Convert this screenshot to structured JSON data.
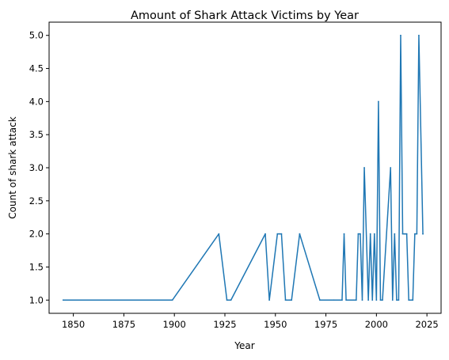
{
  "chart_data": {
    "type": "line",
    "title": "Amount of Shark Attack Victims by Year",
    "xlabel": "Year",
    "ylabel": "Count of shark attack",
    "xlim": [
      1838,
      2032
    ],
    "ylim": [
      0.8,
      5.2
    ],
    "x_ticks": [
      1850,
      1875,
      1900,
      1925,
      1950,
      1975,
      2000,
      2025
    ],
    "x_tick_labels": [
      "1850",
      "1875",
      "1900",
      "1925",
      "1950",
      "1975",
      "2000",
      "2025"
    ],
    "y_ticks": [
      1.0,
      1.5,
      2.0,
      2.5,
      3.0,
      3.5,
      4.0,
      4.5,
      5.0
    ],
    "y_tick_labels": [
      "1.0",
      "1.5",
      "2.0",
      "2.5",
      "3.0",
      "3.5",
      "4.0",
      "4.5",
      "5.0"
    ],
    "grid": false,
    "series": [
      {
        "color": "#1f77b4",
        "x": [
          1845,
          1899,
          1922,
          1926,
          1928,
          1945,
          1947,
          1951,
          1952,
          1953,
          1955,
          1957,
          1958,
          1962,
          1972,
          1979,
          1983,
          1984,
          1985,
          1990,
          1991,
          1992,
          1993,
          1994,
          1996,
          1997,
          1998,
          1999,
          2000,
          2001,
          2002,
          2003,
          2007,
          2008,
          2009,
          2010,
          2011,
          2012,
          2013,
          2014,
          2015,
          2016,
          2018,
          2019,
          2020,
          2021,
          2023
        ],
        "values": [
          1,
          1,
          2,
          1,
          1,
          2,
          1,
          2,
          2,
          2,
          1,
          1,
          1,
          2,
          1,
          1,
          1,
          2,
          1,
          1,
          2,
          2,
          1,
          3,
          1,
          2,
          1,
          2,
          1,
          4,
          1,
          1,
          3,
          1,
          2,
          1,
          1,
          5,
          2,
          2,
          2,
          1,
          1,
          2,
          2,
          5,
          2
        ]
      }
    ]
  }
}
